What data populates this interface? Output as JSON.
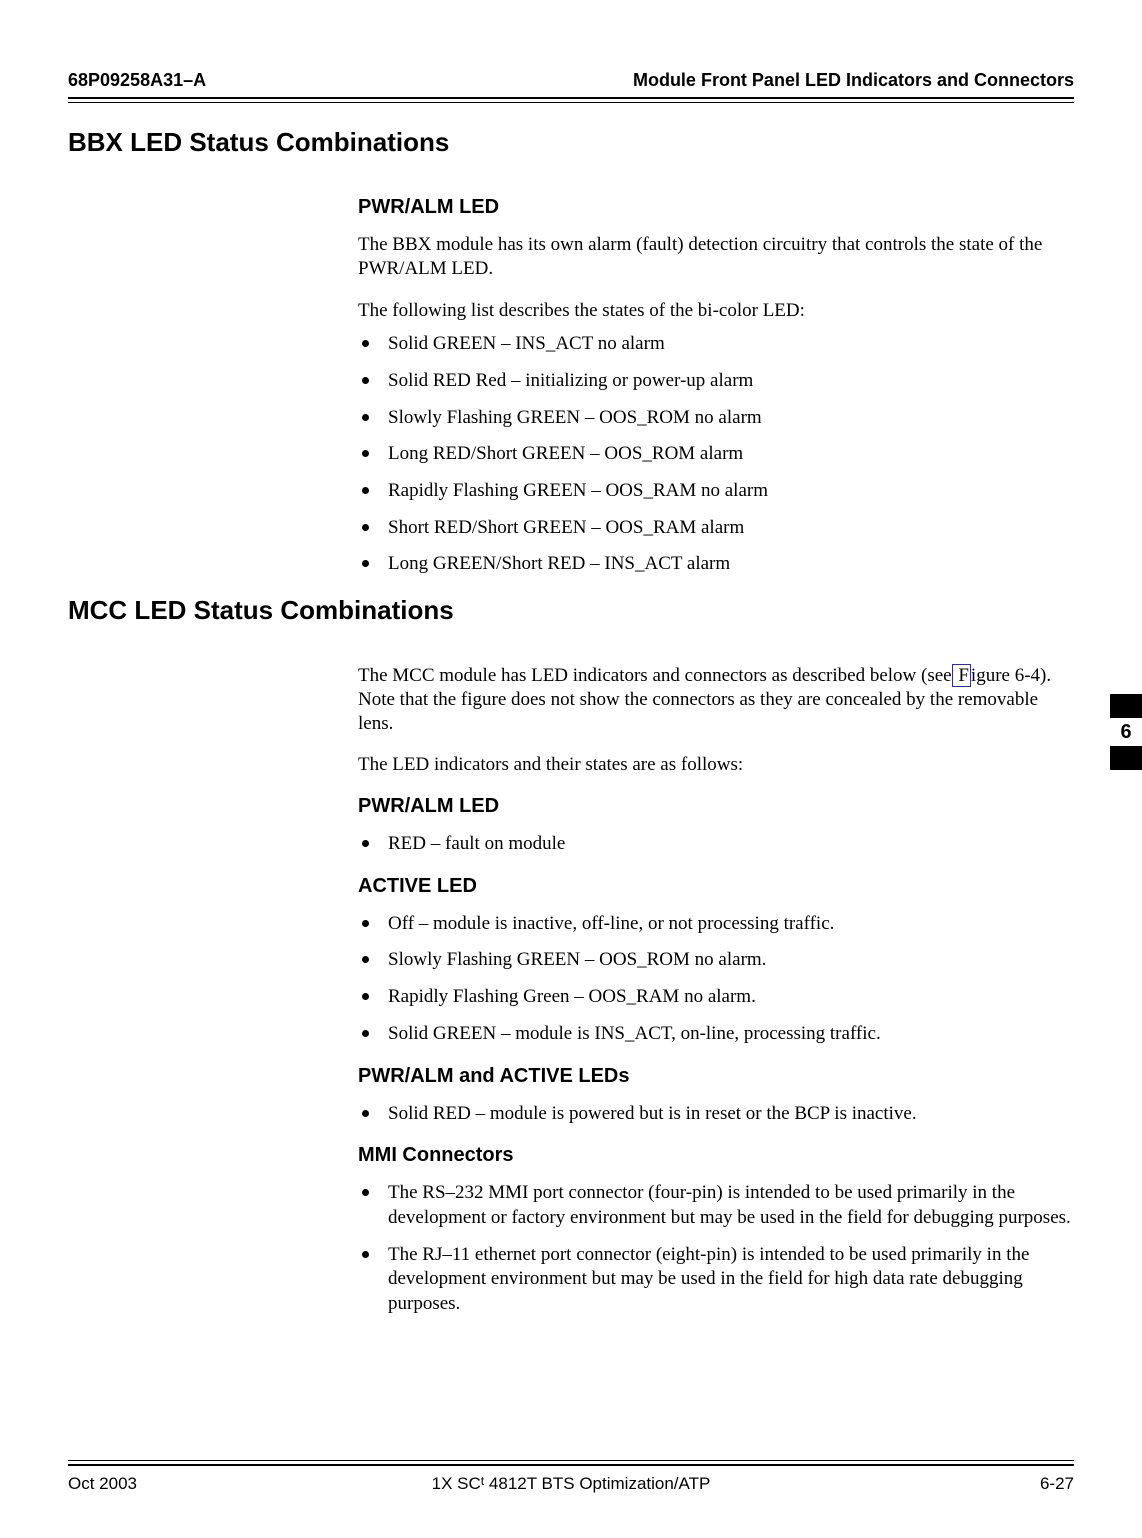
{
  "header": {
    "left": "68P09258A31–A",
    "right": "Module Front Panel LED Indicators and Connectors"
  },
  "h1_bbx": "BBX LED Status Combinations",
  "bbx": {
    "h2": "PWR/ALM LED",
    "p1": "The BBX module has its own alarm (fault) detection circuitry that controls the state of the PWR/ALM LED.",
    "p2": "The following list describes the states of the bi-color LED:",
    "items": [
      "Solid GREEN – INS_ACT no alarm",
      "Solid RED Red – initializing or power-up alarm",
      "Slowly Flashing GREEN – OOS_ROM no alarm",
      "Long RED/Short GREEN – OOS_ROM alarm",
      "Rapidly Flashing GREEN – OOS_RAM no alarm",
      "Short RED/Short GREEN – OOS_RAM alarm",
      "Long GREEN/Short RED – INS_ACT  alarm"
    ]
  },
  "h1_mcc": "MCC LED Status Combinations",
  "mcc": {
    "p1a": "The MCC module has LED indicators and connectors as described below (see",
    "figref": " F",
    "p1b": "igure 6-4). Note that the figure does not show the connectors as they are concealed by the removable lens.",
    "p2": "The LED indicators and their states are as follows:",
    "pwr_h2": "PWR/ALM LED",
    "pwr_items": [
      "RED – fault on module"
    ],
    "act_h2": "ACTIVE LED",
    "act_items": [
      "Off – module is inactive, off-line, or not processing traffic.",
      "Slowly Flashing GREEN – OOS_ROM no alarm.",
      "Rapidly Flashing Green – OOS_RAM no alarm.",
      "Solid GREEN – module is INS_ACT, on-line, processing traffic."
    ],
    "both_h2": "PWR/ALM and ACTIVE LEDs",
    "both_items": [
      "Solid RED – module is powered but is in reset or the BCP is inactive."
    ],
    "mmi_h2": "MMI Connectors",
    "mmi_items": [
      "The RS–232 MMI port connector (four-pin) is intended to be used primarily in the development or factory environment but may be used in the field for debugging purposes.",
      "The RJ–11 ethernet port connector (eight-pin) is intended to be used primarily in the development environment but may be used in the field for high data rate debugging purposes."
    ]
  },
  "tab": "6",
  "footer": {
    "left": "Oct 2003",
    "center_a": "1X SC",
    "center_b": "t",
    "center_c": " 4812T BTS Optimization/ATP",
    "right": "6-27"
  }
}
